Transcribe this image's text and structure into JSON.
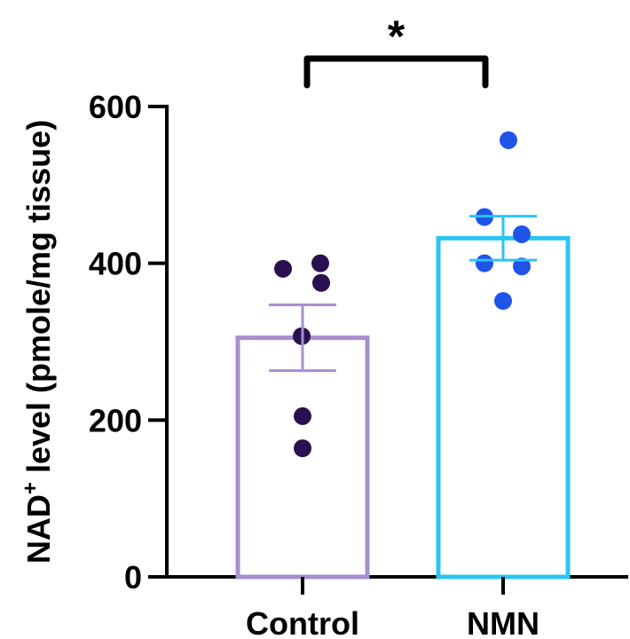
{
  "chart_data": {
    "type": "bar",
    "title": "",
    "xlabel": "",
    "ylabel": "NAD",
    "ylabel_superscript": "+",
    "ylabel_rest": " level (pmole/mg tissue)",
    "categories": [
      "Control",
      "NMN"
    ],
    "means": [
      305,
      432
    ],
    "sem": [
      42,
      28
    ],
    "points": [
      [
        393,
        400,
        375,
        307,
        205,
        164
      ],
      [
        557,
        459,
        437,
        400,
        396,
        352
      ]
    ],
    "ylim": [
      0,
      600
    ],
    "yticks": [
      0,
      200,
      400,
      600
    ],
    "bar_colors": [
      "#a78fd0",
      "#2cc4f2"
    ],
    "point_colors": [
      "#2a1050",
      "#1f54e8"
    ],
    "significance": {
      "between": [
        "Control",
        "NMN"
      ],
      "label": "*"
    }
  }
}
